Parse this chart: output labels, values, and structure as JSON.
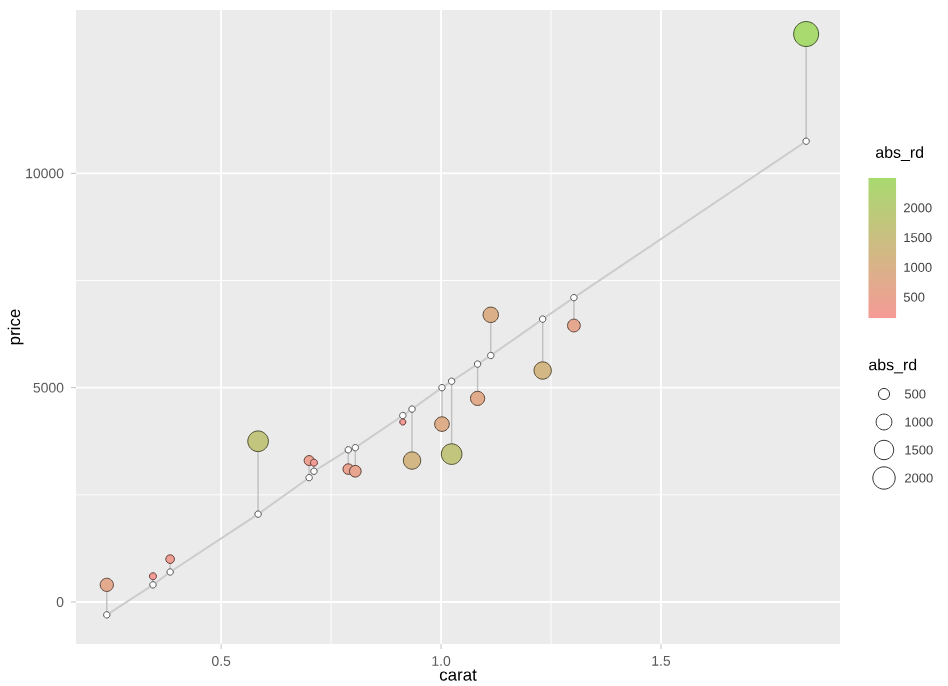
{
  "chart_data": {
    "type": "scatter",
    "xlabel": "carat",
    "ylabel": "price",
    "clabel": "abs_rd",
    "legend_title": "abs_rd",
    "xlim": [
      0.17,
      1.907
    ],
    "ylim": [
      -980,
      13811
    ],
    "xticks": [
      {
        "value": 0.5,
        "label": "0.5"
      },
      {
        "value": 1,
        "label": "1.0"
      },
      {
        "value": 1.5,
        "label": "1.5"
      }
    ],
    "yticks": [
      0,
      5000,
      10000
    ],
    "grid": true,
    "clim": [
      150,
      2500
    ],
    "cticks": [
      500,
      1000,
      1500,
      2000
    ],
    "size_legend": [
      500,
      1000,
      1500,
      2000
    ],
    "series": [
      {
        "type": "line",
        "color": "#cccccc",
        "x": [
          0.24,
          0.345,
          0.384,
          0.584,
          0.7,
          0.711,
          0.789,
          0.805,
          0.913,
          0.934,
          1.002,
          1.024,
          1.083,
          1.113,
          1.231,
          1.302,
          1.83
        ],
        "values": [
          -300,
          400,
          700,
          2050,
          2900,
          3050,
          3550,
          3600,
          4350,
          4500,
          5000,
          5150,
          5550,
          5750,
          6600,
          7100,
          10750
        ]
      },
      {
        "color": "#555555",
        "marker": "circle",
        "x": [
          0.24,
          0.345,
          0.384,
          0.584,
          0.7,
          0.711,
          0.789,
          0.805,
          0.913,
          0.934,
          1.002,
          1.024,
          1.083,
          1.113,
          1.231,
          1.302,
          1.83
        ],
        "values": [
          -300,
          400,
          700,
          2050,
          2900,
          3050,
          3550,
          3600,
          4350,
          4500,
          5000,
          5150,
          5550,
          5750,
          6600,
          7100,
          10750
        ]
      },
      {
        "type": "bubble",
        "x": [
          0.24,
          0.345,
          0.384,
          0.584,
          0.7,
          0.711,
          0.789,
          0.805,
          0.913,
          0.934,
          1.002,
          1.024,
          1.083,
          1.113,
          1.231,
          1.302,
          1.83
        ],
        "values": [
          400,
          600,
          1000,
          3750,
          3300,
          3250,
          3100,
          3050,
          4200,
          3300,
          4150,
          3450,
          4750,
          6700,
          5400,
          6450,
          13250
        ],
        "cvalues": [
          700,
          200,
          300,
          1700,
          400,
          200,
          450,
          550,
          150,
          1200,
          850,
          1700,
          800,
          950,
          1200,
          650,
          2500
        ],
        "sizes": [
          700,
          200,
          300,
          1700,
          400,
          200,
          450,
          550,
          150,
          1200,
          850,
          1700,
          800,
          950,
          1200,
          650,
          2500
        ],
        "colors": [
          "#e3aa8d",
          "#f39c95",
          "#f09f94",
          "#c2c57d",
          "#eda292",
          "#f39c95",
          "#eba391",
          "#e8a690",
          "#f59b96",
          "#d3b785",
          "#deae8b",
          "#c2c57d",
          "#e0ac8b",
          "#dbb089",
          "#d3b785",
          "#e5a88e",
          "#a8da70"
        ],
        "errors": [
          [
            -300,
            400
          ],
          [
            400,
            600
          ],
          [
            700,
            1000
          ],
          [
            2050,
            3750
          ],
          [
            2900,
            3300
          ],
          [
            3050,
            3250
          ],
          [
            3100,
            3550
          ],
          [
            3050,
            3600
          ],
          [
            4200,
            4350
          ],
          [
            3300,
            4500
          ],
          [
            4150,
            5000
          ],
          [
            3450,
            5150
          ],
          [
            4750,
            5550
          ],
          [
            5750,
            6700
          ],
          [
            5400,
            6600
          ],
          [
            6450,
            7100
          ],
          [
            10750,
            13250
          ]
        ]
      }
    ]
  }
}
